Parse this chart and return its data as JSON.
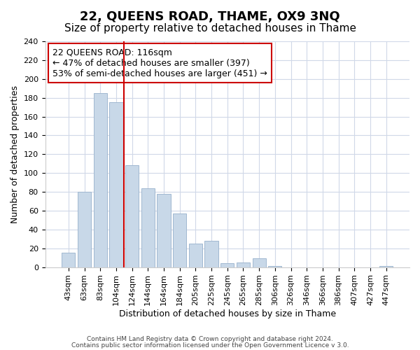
{
  "title": "22, QUEENS ROAD, THAME, OX9 3NQ",
  "subtitle": "Size of property relative to detached houses in Thame",
  "xlabel": "Distribution of detached houses by size in Thame",
  "ylabel": "Number of detached properties",
  "footer_line1": "Contains HM Land Registry data © Crown copyright and database right 2024.",
  "footer_line2": "Contains public sector information licensed under the Open Government Licence v 3.0.",
  "bar_labels": [
    "43sqm",
    "63sqm",
    "83sqm",
    "104sqm",
    "124sqm",
    "144sqm",
    "164sqm",
    "184sqm",
    "205sqm",
    "225sqm",
    "245sqm",
    "265sqm",
    "285sqm",
    "306sqm",
    "326sqm",
    "346sqm",
    "366sqm",
    "386sqm",
    "407sqm",
    "427sqm",
    "447sqm"
  ],
  "bar_values": [
    15,
    80,
    185,
    175,
    108,
    84,
    78,
    57,
    25,
    28,
    4,
    5,
    9,
    1,
    0,
    0,
    0,
    0,
    0,
    0,
    1
  ],
  "bar_color": "#c8d8e8",
  "bar_edge_color": "#a0b8d0",
  "highlight_line_color": "#cc0000",
  "annotation_line1": "22 QUEENS ROAD: 116sqm",
  "annotation_line2": "← 47% of detached houses are smaller (397)",
  "annotation_line3": "53% of semi-detached houses are larger (451) →",
  "annotation_box_color": "#ffffff",
  "annotation_box_edge": "#cc0000",
  "ylim": [
    0,
    240
  ],
  "yticks": [
    0,
    20,
    40,
    60,
    80,
    100,
    120,
    140,
    160,
    180,
    200,
    220,
    240
  ],
  "title_fontsize": 13,
  "subtitle_fontsize": 11,
  "axis_label_fontsize": 9,
  "tick_fontsize": 8,
  "annotation_fontsize": 9,
  "footer_fontsize": 6.5
}
